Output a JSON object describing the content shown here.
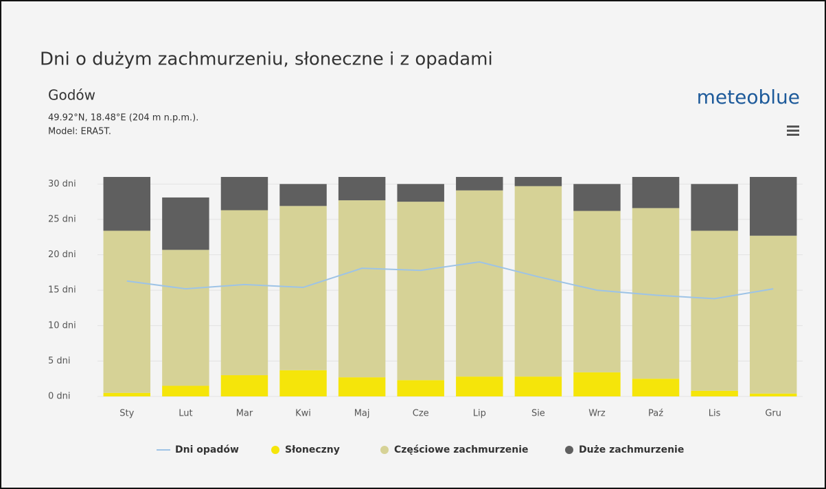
{
  "chart_data": {
    "type": "stacked-bar-line",
    "title": "Dni o dużym zachmurzeniu, słoneczne i z opadami",
    "location": "Godów",
    "coordinates": "49.92°N, 18.48°E (204 m n.p.m.).",
    "model": "Model: ERA5T.",
    "brand": "meteoblue",
    "categories": [
      "Sty",
      "Lut",
      "Mar",
      "Kwi",
      "Maj",
      "Cze",
      "Lip",
      "Sie",
      "Wrz",
      "Paź",
      "Lis",
      "Gru"
    ],
    "series": [
      {
        "name": "Dni opadów",
        "color": "#9dc3e6",
        "kind": "line",
        "values": [
          16.3,
          15.2,
          15.8,
          15.4,
          18.1,
          17.8,
          19.0,
          16.9,
          15.0,
          14.3,
          13.8,
          15.2
        ]
      },
      {
        "name": "Słoneczny",
        "color": "#f5e50a",
        "kind": "bar",
        "values": [
          0.5,
          1.5,
          3.0,
          3.7,
          2.7,
          2.3,
          2.8,
          2.8,
          3.4,
          2.5,
          0.8,
          0.4
        ]
      },
      {
        "name": "Częściowe zachmurzenie",
        "color": "#d6d296",
        "kind": "bar",
        "values": [
          22.9,
          19.2,
          23.3,
          23.2,
          25.0,
          25.2,
          26.3,
          26.9,
          22.8,
          24.1,
          22.6,
          22.3
        ]
      },
      {
        "name": "Duże zachmurzenie",
        "color": "#5f5f5f",
        "kind": "bar",
        "values": [
          7.6,
          7.4,
          4.7,
          3.1,
          3.3,
          2.5,
          1.9,
          1.3,
          3.8,
          4.4,
          6.6,
          8.3
        ]
      }
    ],
    "ylim": [
      0,
      31
    ],
    "yticks": [
      {
        "value": 0,
        "label": "0 dni"
      },
      {
        "value": 5,
        "label": "5 dni"
      },
      {
        "value": 10,
        "label": "10 dni"
      },
      {
        "value": 15,
        "label": "15 dni"
      },
      {
        "value": 20,
        "label": "20 dni"
      },
      {
        "value": 25,
        "label": "25 dni"
      },
      {
        "value": 30,
        "label": "30 dni"
      }
    ],
    "grid": true,
    "legend": "bottom"
  }
}
